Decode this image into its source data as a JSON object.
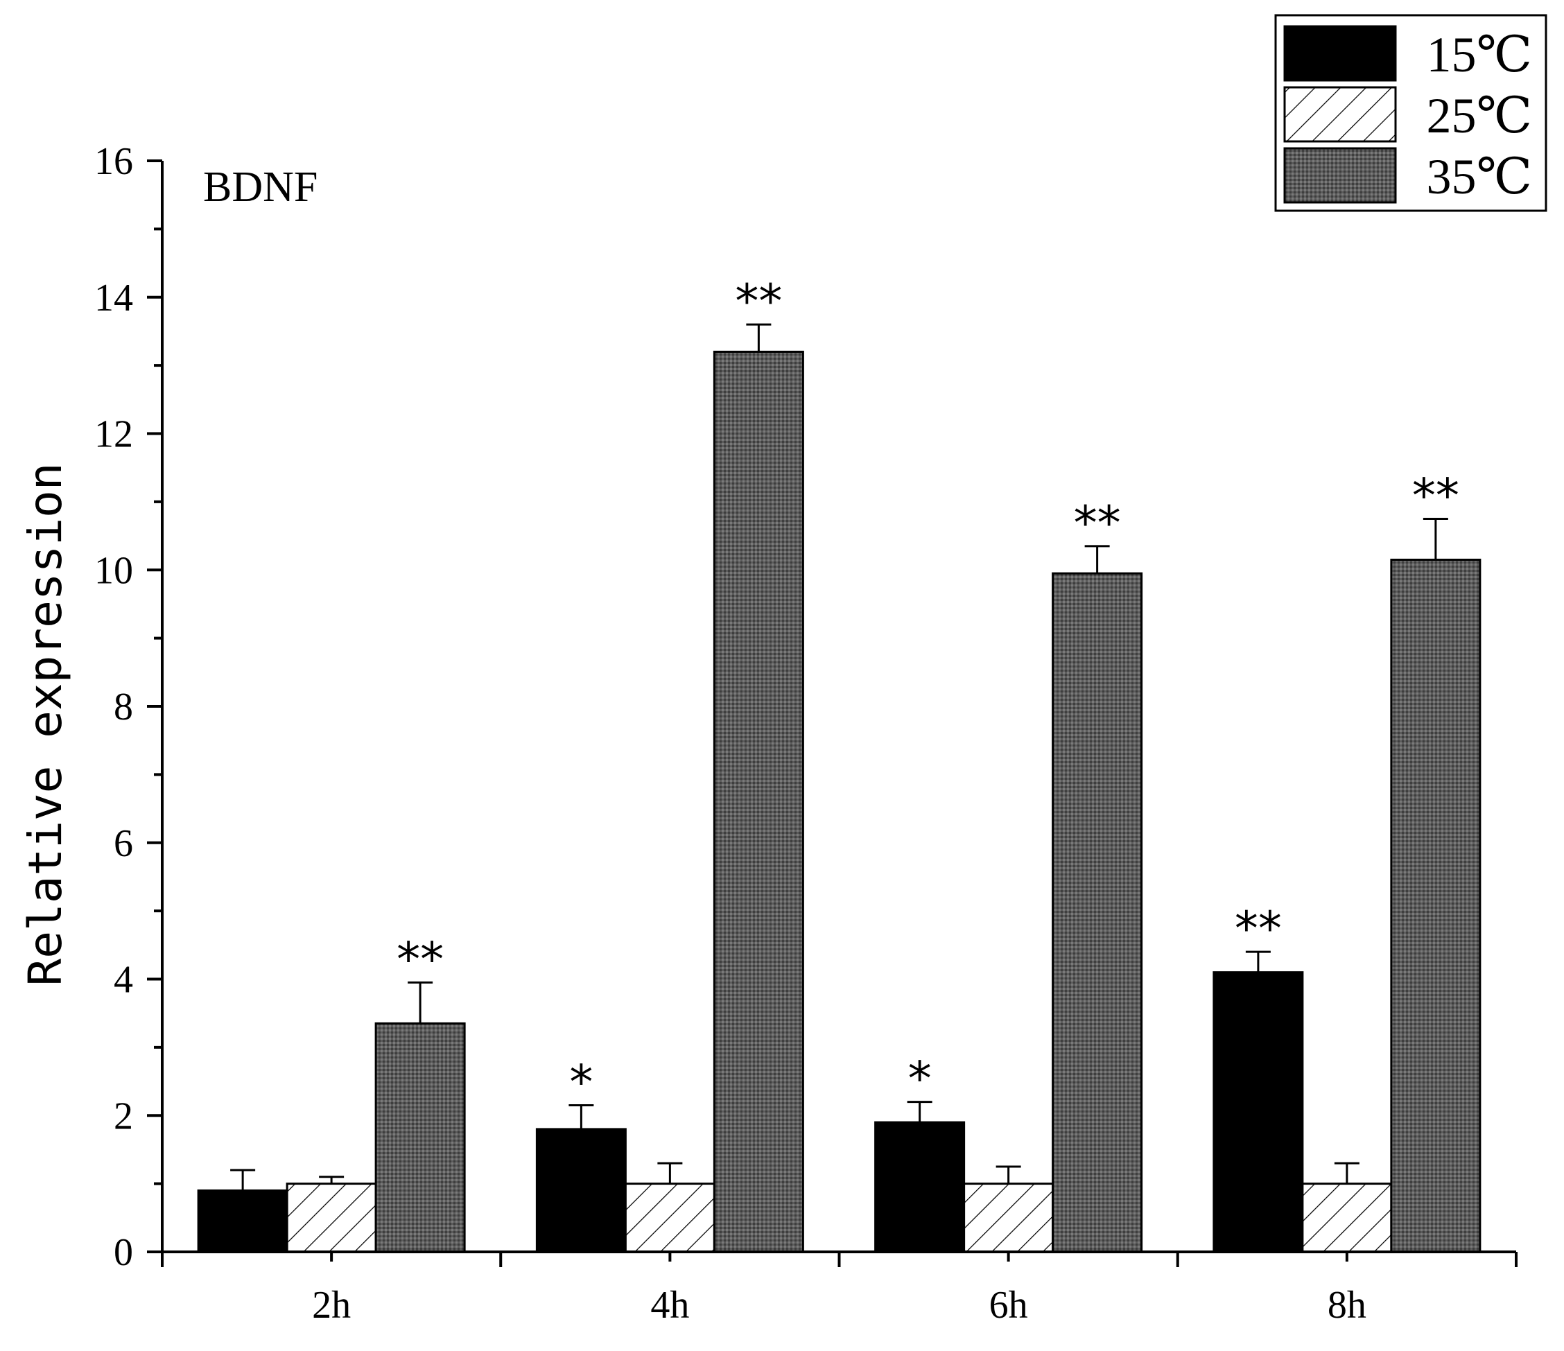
{
  "chart_data": {
    "type": "bar",
    "title": "BDNF",
    "xlabel": "",
    "ylabel": "Relative expression",
    "ylim": [
      0,
      16
    ],
    "yticks": [
      0,
      2,
      4,
      6,
      8,
      10,
      12,
      14,
      16
    ],
    "categories": [
      "2h",
      "4h",
      "6h",
      "8h"
    ],
    "series": [
      {
        "name": "15℃",
        "fill": "solid",
        "color": "#000000",
        "values": [
          0.9,
          1.8,
          1.9,
          4.1
        ],
        "errors": [
          0.3,
          0.35,
          0.3,
          0.3
        ],
        "significance": [
          "",
          "*",
          "*",
          "**"
        ]
      },
      {
        "name": "25℃",
        "fill": "hatched",
        "color": "#ffffff",
        "values": [
          1.0,
          1.0,
          1.0,
          1.0
        ],
        "errors": [
          0.1,
          0.3,
          0.25,
          0.3
        ],
        "significance": [
          "",
          "",
          "",
          ""
        ]
      },
      {
        "name": "35℃",
        "fill": "dotted-grey",
        "color": "#5a5a5a",
        "values": [
          3.35,
          13.2,
          9.95,
          10.15
        ],
        "errors": [
          0.6,
          0.4,
          0.4,
          0.6
        ],
        "significance": [
          "**",
          "**",
          "**",
          "**"
        ]
      }
    ],
    "legend_position": "top-right",
    "grid": false
  }
}
